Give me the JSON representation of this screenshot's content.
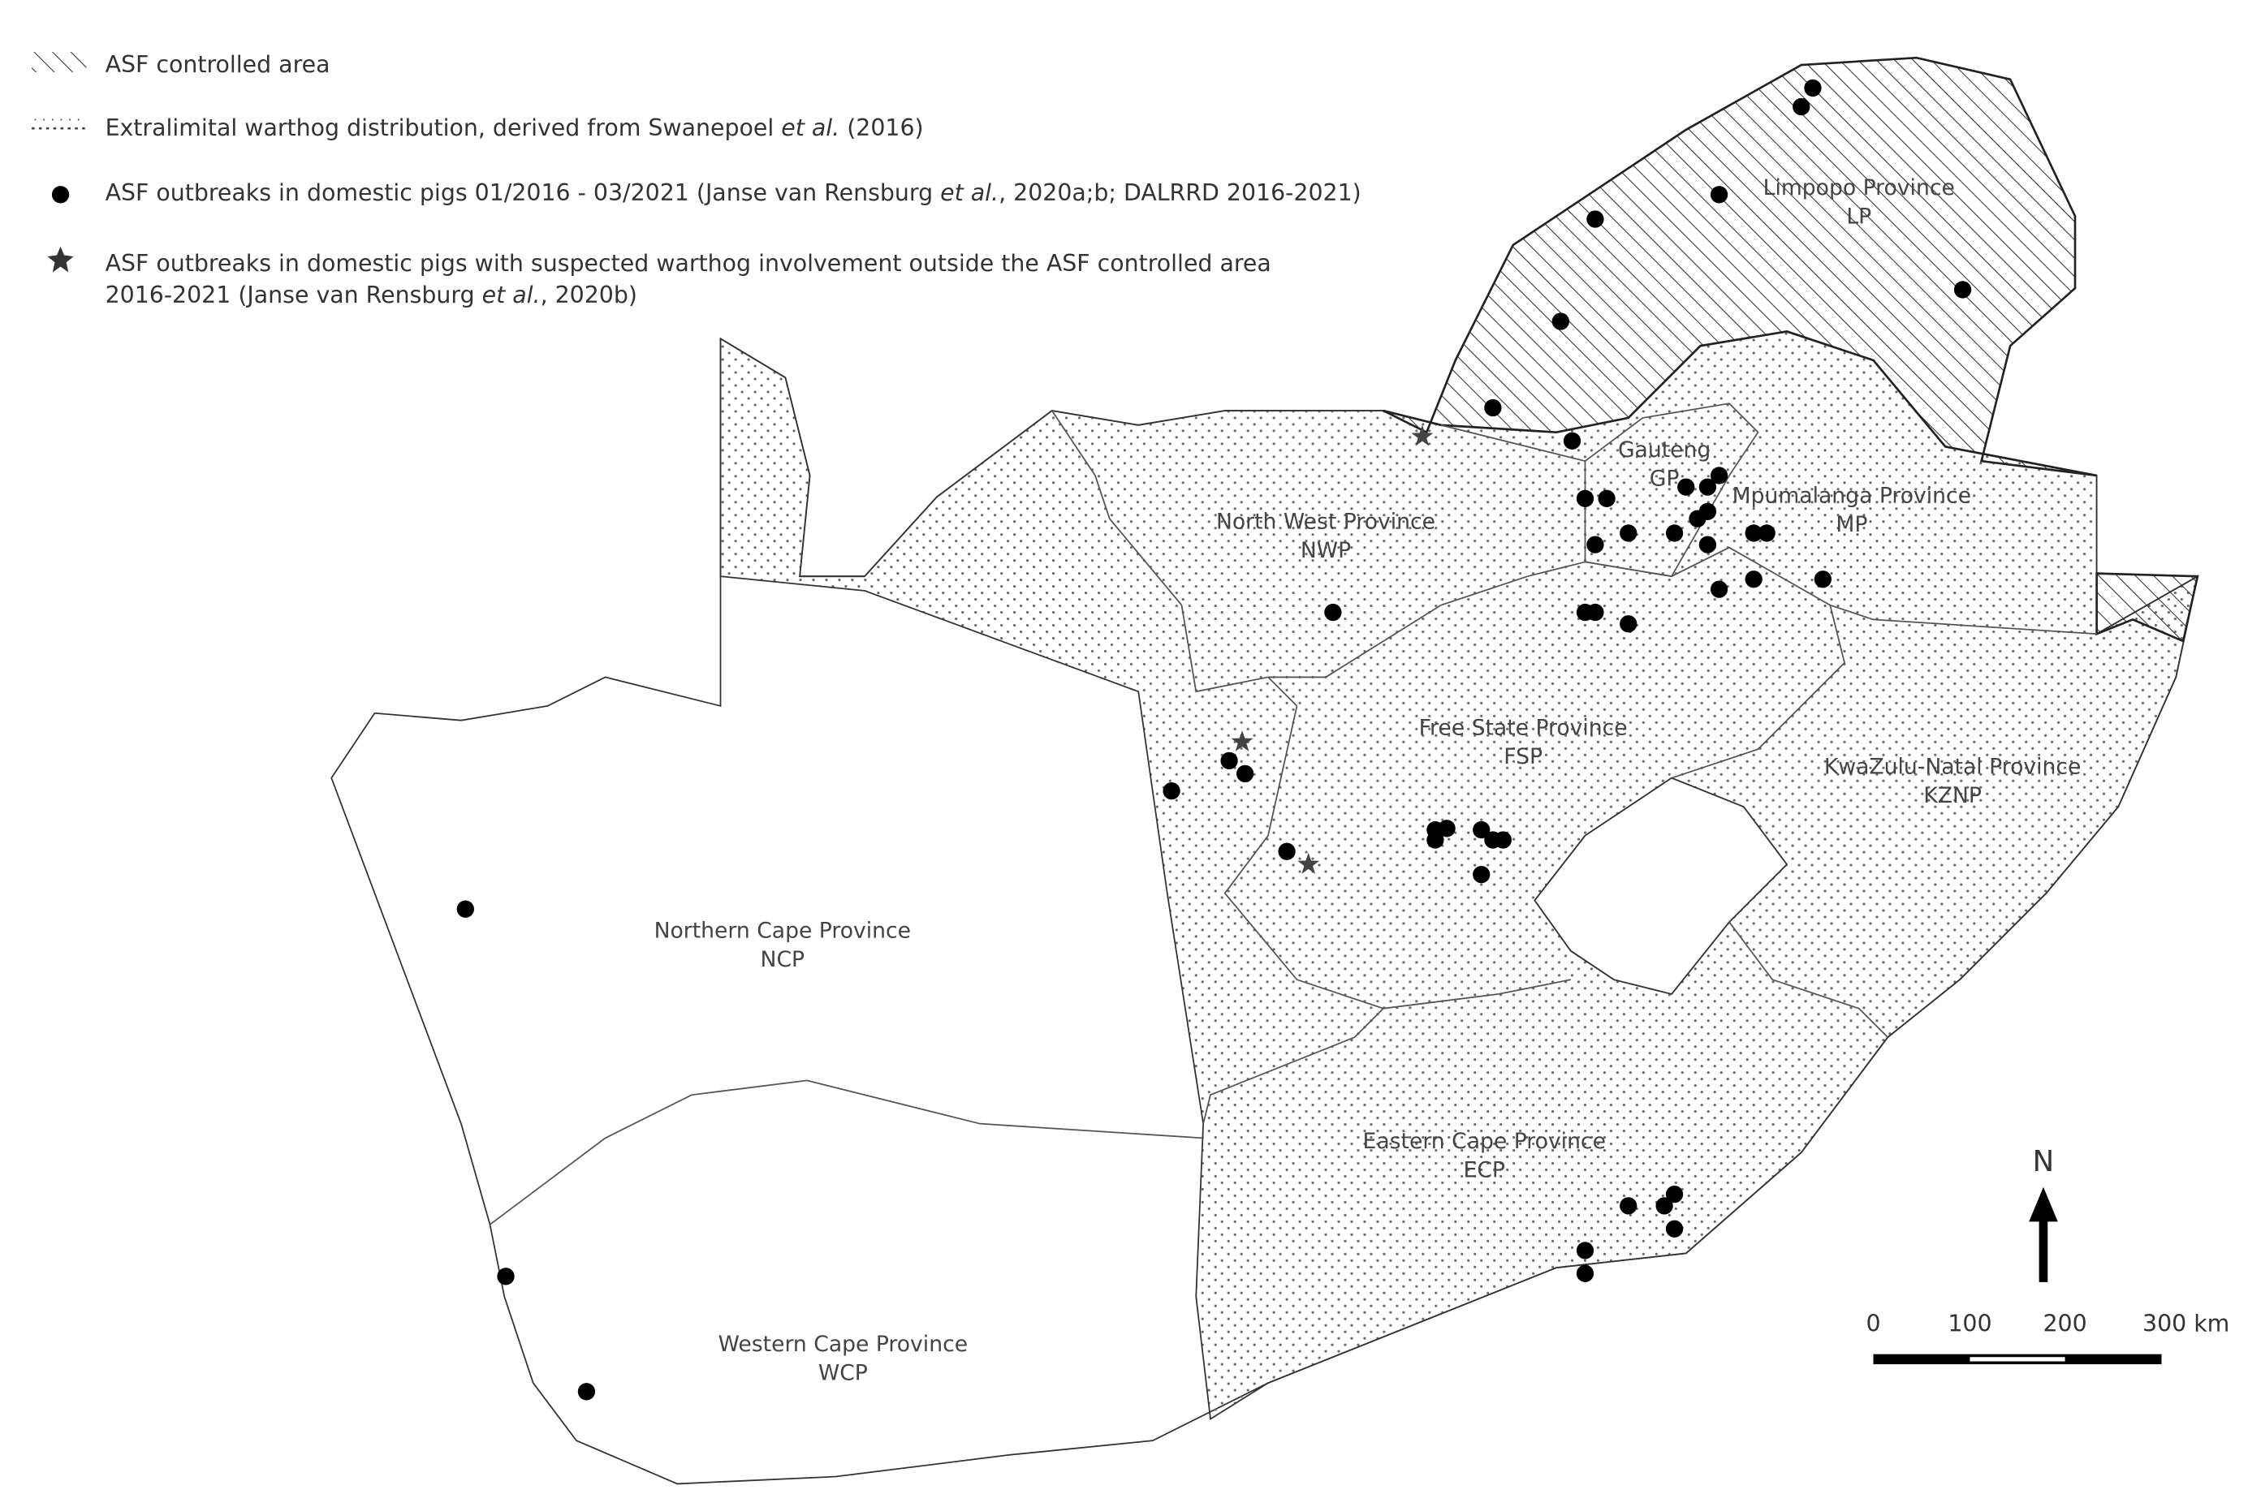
{
  "legend": [
    {
      "lines": [
        [
          {
            "text": "ASF controlled area",
            "italic": false
          }
        ]
      ]
    },
    {
      "lines": [
        [
          {
            "text": "Extralimital warthog distribution, derived from Swanepoel ",
            "italic": false
          },
          {
            "text": "et al.",
            "italic": true
          },
          {
            "text": " (2016)",
            "italic": false
          }
        ]
      ]
    },
    {
      "lines": [
        [
          {
            "text": "ASF outbreaks in domestic pigs 01/2016 - 03/2021 (Janse van Rensburg ",
            "italic": false
          },
          {
            "text": "et al.",
            "italic": true
          },
          {
            "text": ", 2020a;b; DALRRD 2016-2021)",
            "italic": false
          }
        ]
      ]
    },
    {
      "lines": [
        [
          {
            "text": "ASF outbreaks in domestic pigs with suspected warthog involvement outside the ASF controlled area",
            "italic": false
          }
        ],
        [
          {
            "text": "2016-2021 (Janse van Rensburg ",
            "italic": false
          },
          {
            "text": "et al.",
            "italic": true
          },
          {
            "text": ", 2020b)",
            "italic": false
          }
        ]
      ]
    }
  ],
  "provinces": [
    {
      "lines": [
        "Limpopo Province",
        "LP"
      ]
    },
    {
      "lines": [
        "Gauteng",
        "GP"
      ]
    },
    {
      "lines": [
        "Mpumalanga Province",
        "MP"
      ]
    },
    {
      "lines": [
        "North West Province",
        "NWP"
      ]
    },
    {
      "lines": [
        "Free State Province",
        "FSP"
      ]
    },
    {
      "lines": [
        "KwaZulu-Natal Province",
        "KZNP"
      ]
    },
    {
      "lines": [
        "Northern Cape Province",
        "NCP"
      ]
    },
    {
      "lines": [
        "Eastern Cape Province",
        "ECP"
      ]
    },
    {
      "lines": [
        "Western Cape Province",
        "WCP"
      ]
    }
  ],
  "scale_bar": {
    "labels": [
      "0",
      "100",
      "200",
      "300 km"
    ]
  },
  "north_arrow": {
    "label": "N"
  }
}
